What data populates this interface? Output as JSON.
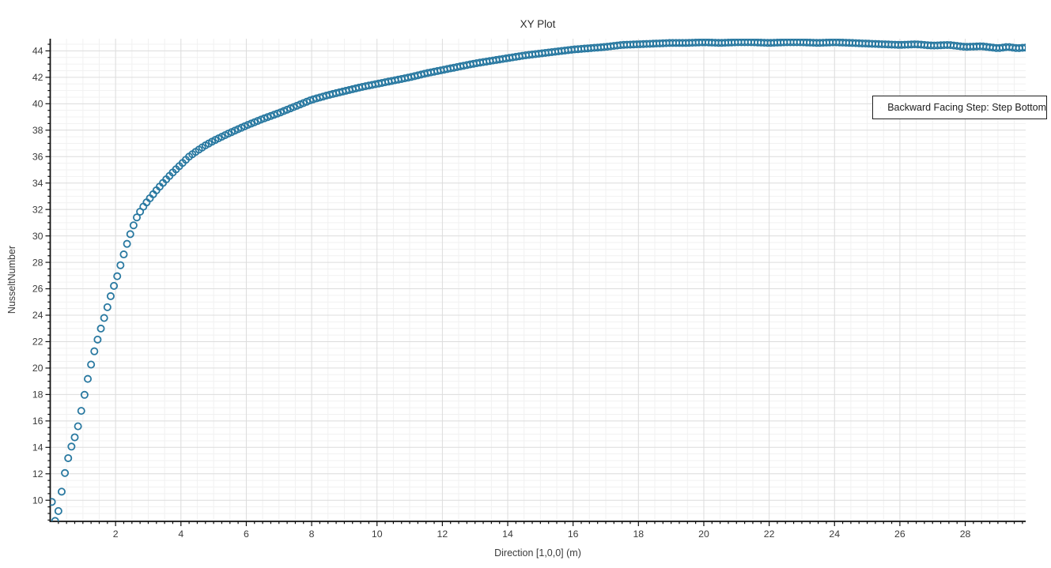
{
  "window": {
    "title": "XY Plot"
  },
  "chart_data": {
    "type": "scatter",
    "title": "XY Plot",
    "xlabel": "Direction [1,0,0] (m)",
    "ylabel": "NusseltNumber",
    "xlim": [
      0,
      29.85
    ],
    "ylim": [
      8.4,
      44.92
    ],
    "grid": {
      "show": true,
      "minor_color": "#f1f1f1",
      "major_color": "#dcdcdc"
    },
    "axis_color": "#101010",
    "tick_label_color": "#3a3a3a",
    "x_ticks": {
      "label_start": 2,
      "label_step": 2,
      "label_end": 28,
      "major_step": 2,
      "minor_step": 0.25,
      "grid_step": 0.5
    },
    "y_ticks": {
      "label_start": 10,
      "label_step": 2,
      "label_end": 44,
      "major_step": 2,
      "minor_step": 0.5,
      "grid_step": 0.5
    },
    "legend": {
      "position": "right-inside",
      "label": "Backward Facing Step: Step Bottom"
    },
    "series": [
      {
        "name": "Backward Facing Step: Step Bottom",
        "marker": "open-circle",
        "color": "#2878a0",
        "marker_radius_px": 4.1,
        "marker_stroke_px": 1.8,
        "x_start": 0.05,
        "x_step": 0.1,
        "x_end": 29.85,
        "anchor_points": [
          [
            0.02,
            10.55
          ],
          [
            0.12,
            8.3
          ],
          [
            0.22,
            8.75
          ],
          [
            0.32,
            10.2
          ],
          [
            0.42,
            11.7
          ],
          [
            0.52,
            12.9
          ],
          [
            0.62,
            13.85
          ],
          [
            0.72,
            14.55
          ],
          [
            0.82,
            15.25
          ],
          [
            0.92,
            16.4
          ],
          [
            1.02,
            17.6
          ],
          [
            1.12,
            18.85
          ],
          [
            1.22,
            19.95
          ],
          [
            1.32,
            21.0
          ],
          [
            1.42,
            21.9
          ],
          [
            1.52,
            22.75
          ],
          [
            1.62,
            23.55
          ],
          [
            1.72,
            24.35
          ],
          [
            1.82,
            25.2
          ],
          [
            1.92,
            26.0
          ],
          [
            2.05,
            26.95
          ],
          [
            2.2,
            28.2
          ],
          [
            2.35,
            29.4
          ],
          [
            2.5,
            30.5
          ],
          [
            2.65,
            31.4
          ],
          [
            2.8,
            32.05
          ],
          [
            3.0,
            32.7
          ],
          [
            3.25,
            33.45
          ],
          [
            3.5,
            34.15
          ],
          [
            3.75,
            34.8
          ],
          [
            4.0,
            35.4
          ],
          [
            4.25,
            36.0
          ],
          [
            4.5,
            36.45
          ],
          [
            4.75,
            36.85
          ],
          [
            5.0,
            37.2
          ],
          [
            5.5,
            37.8
          ],
          [
            6.0,
            38.35
          ],
          [
            6.5,
            38.85
          ],
          [
            7.0,
            39.3
          ],
          [
            7.5,
            39.8
          ],
          [
            8.0,
            40.3
          ],
          [
            8.5,
            40.65
          ],
          [
            9.0,
            40.95
          ],
          [
            9.5,
            41.25
          ],
          [
            10.0,
            41.5
          ],
          [
            10.5,
            41.75
          ],
          [
            11.0,
            42.0
          ],
          [
            11.5,
            42.3
          ],
          [
            12.0,
            42.55
          ],
          [
            12.5,
            42.8
          ],
          [
            13.0,
            43.05
          ],
          [
            13.5,
            43.25
          ],
          [
            14.0,
            43.45
          ],
          [
            14.5,
            43.65
          ],
          [
            15.0,
            43.8
          ],
          [
            15.5,
            43.95
          ],
          [
            16.0,
            44.1
          ],
          [
            16.5,
            44.2
          ],
          [
            17.0,
            44.3
          ],
          [
            17.5,
            44.45
          ],
          [
            18.0,
            44.5
          ],
          [
            18.5,
            44.55
          ],
          [
            19.0,
            44.6
          ],
          [
            19.5,
            44.6
          ],
          [
            20.0,
            44.65
          ],
          [
            20.5,
            44.6
          ],
          [
            21.0,
            44.65
          ],
          [
            21.5,
            44.65
          ],
          [
            22.0,
            44.6
          ],
          [
            22.5,
            44.65
          ],
          [
            23.0,
            44.65
          ],
          [
            23.5,
            44.6
          ],
          [
            24.0,
            44.65
          ],
          [
            24.5,
            44.6
          ],
          [
            25.0,
            44.55
          ],
          [
            25.5,
            44.5
          ],
          [
            26.0,
            44.45
          ],
          [
            26.5,
            44.5
          ],
          [
            27.0,
            44.4
          ],
          [
            27.5,
            44.45
          ],
          [
            28.0,
            44.3
          ],
          [
            28.5,
            44.35
          ],
          [
            29.0,
            44.2
          ],
          [
            29.3,
            44.3
          ],
          [
            29.6,
            44.2
          ],
          [
            29.85,
            44.25
          ]
        ]
      }
    ]
  }
}
